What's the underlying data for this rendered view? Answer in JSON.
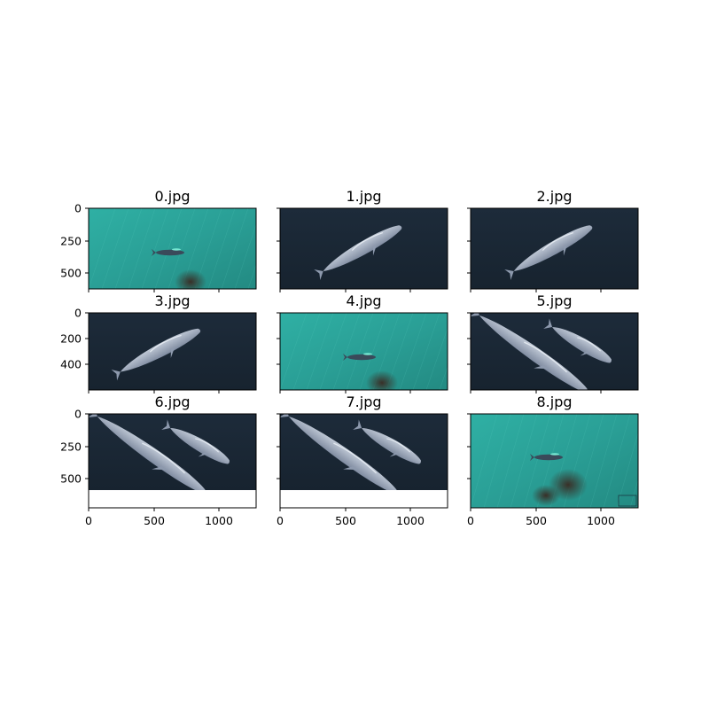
{
  "figure": {
    "panels": [
      {
        "title": "0.jpg",
        "scene": "teal",
        "ytick_labels": [
          "0",
          "250",
          "500"
        ],
        "xtick_labels": []
      },
      {
        "title": "1.jpg",
        "scene": "dark-single",
        "ytick_labels": [],
        "xtick_labels": []
      },
      {
        "title": "2.jpg",
        "scene": "dark-single",
        "ytick_labels": [],
        "xtick_labels": []
      },
      {
        "title": "3.jpg",
        "scene": "dark-single-wide",
        "ytick_labels": [
          "0",
          "200",
          "400"
        ],
        "xtick_labels": []
      },
      {
        "title": "4.jpg",
        "scene": "teal",
        "ytick_labels": [],
        "xtick_labels": []
      },
      {
        "title": "5.jpg",
        "scene": "dark-pair",
        "ytick_labels": [],
        "xtick_labels": []
      },
      {
        "title": "6.jpg",
        "scene": "dark-pair",
        "ytick_labels": [
          "0",
          "250",
          "500"
        ],
        "xtick_labels": [
          "0",
          "500",
          "1000"
        ]
      },
      {
        "title": "7.jpg",
        "scene": "dark-pair",
        "ytick_labels": [],
        "xtick_labels": [
          "0",
          "500",
          "1000"
        ]
      },
      {
        "title": "8.jpg",
        "scene": "teal",
        "ytick_labels": [],
        "xtick_labels": [
          "0",
          "500",
          "1000"
        ]
      }
    ],
    "colors": {
      "teal_water": "#2aa49a",
      "dark_water": "#1c2a38",
      "whale": "#9aa6b8",
      "frame": "#000000"
    }
  }
}
